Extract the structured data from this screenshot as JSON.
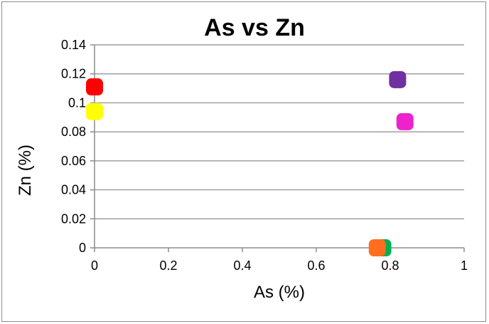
{
  "chart_data": {
    "type": "scatter",
    "title": "As vs Zn",
    "xlabel": "As (%)",
    "ylabel": "Zn (%)",
    "xlim": [
      0,
      1
    ],
    "ylim": [
      0,
      0.14
    ],
    "x_ticks": [
      "0",
      "0.2",
      "0.4",
      "0.6",
      "0.8",
      "1"
    ],
    "y_ticks": [
      "0",
      "0.02",
      "0.04",
      "0.06",
      "0.08",
      "0.1",
      "0.12",
      "0.14"
    ],
    "grid": "horizontal",
    "legend": "none",
    "points": [
      {
        "x": 0.0,
        "y": 0.111,
        "color": "#ff0000"
      },
      {
        "x": 0.0,
        "y": 0.094,
        "color": "#ffff00"
      },
      {
        "x": 0.82,
        "y": 0.116,
        "color": "#7030a0"
      },
      {
        "x": 0.84,
        "y": 0.087,
        "color": "#ee22cc"
      },
      {
        "x": 0.775,
        "y": 0.0,
        "color": "#2e75b6"
      },
      {
        "x": 0.78,
        "y": 0.0,
        "color": "#00b050"
      },
      {
        "x": 0.765,
        "y": 0.0,
        "color": "#ff6d1f"
      }
    ]
  }
}
